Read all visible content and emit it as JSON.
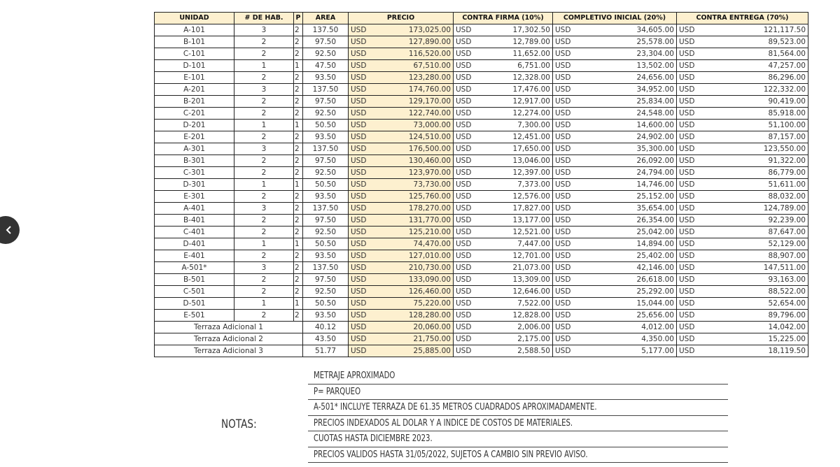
{
  "nav": {
    "back_icon": "chevron-left-icon"
  },
  "colors": {
    "header_bg": "#fdf0cf",
    "precio_bg": "#fdf0cf",
    "border": "#222222"
  },
  "table": {
    "headers": [
      "UNIDAD",
      "# DE HAB.",
      "P",
      "AREA",
      "PRECIO",
      "CONTRA FIRMA (10%)",
      "COMPLETIVO INICIAL (20%)",
      "CONTRA ENTREGA (70%)"
    ],
    "currency": "USD",
    "rows": [
      {
        "unidad": "A-101",
        "hab": "3",
        "p": "2",
        "area": "137.50",
        "precio": "173,025.00",
        "firma": "17,302.50",
        "inicial": "34,605.00",
        "entrega": "121,117.50"
      },
      {
        "unidad": "B-101",
        "hab": "2",
        "p": "2",
        "area": "97.50",
        "precio": "127,890.00",
        "firma": "12,789.00",
        "inicial": "25,578.00",
        "entrega": "89,523.00"
      },
      {
        "unidad": "C-101",
        "hab": "2",
        "p": "2",
        "area": "92.50",
        "precio": "116,520.00",
        "firma": "11,652.00",
        "inicial": "23,304.00",
        "entrega": "81,564.00"
      },
      {
        "unidad": "D-101",
        "hab": "1",
        "p": "1",
        "area": "47.50",
        "precio": "67,510.00",
        "firma": "6,751.00",
        "inicial": "13,502.00",
        "entrega": "47,257.00"
      },
      {
        "unidad": "E-101",
        "hab": "2",
        "p": "2",
        "area": "93.50",
        "precio": "123,280.00",
        "firma": "12,328.00",
        "inicial": "24,656.00",
        "entrega": "86,296.00"
      },
      {
        "unidad": "A-201",
        "hab": "3",
        "p": "2",
        "area": "137.50",
        "precio": "174,760.00",
        "firma": "17,476.00",
        "inicial": "34,952.00",
        "entrega": "122,332.00"
      },
      {
        "unidad": "B-201",
        "hab": "2",
        "p": "2",
        "area": "97.50",
        "precio": "129,170.00",
        "firma": "12,917.00",
        "inicial": "25,834.00",
        "entrega": "90,419.00"
      },
      {
        "unidad": "C-201",
        "hab": "2",
        "p": "2",
        "area": "92.50",
        "precio": "122,740.00",
        "firma": "12,274.00",
        "inicial": "24,548.00",
        "entrega": "85,918.00"
      },
      {
        "unidad": "D-201",
        "hab": "1",
        "p": "1",
        "area": "50.50",
        "precio": "73,000.00",
        "firma": "7,300.00",
        "inicial": "14,600.00",
        "entrega": "51,100.00"
      },
      {
        "unidad": "E-201",
        "hab": "2",
        "p": "2",
        "area": "93.50",
        "precio": "124,510.00",
        "firma": "12,451.00",
        "inicial": "24,902.00",
        "entrega": "87,157.00"
      },
      {
        "unidad": "A-301",
        "hab": "3",
        "p": "2",
        "area": "137.50",
        "precio": "176,500.00",
        "firma": "17,650.00",
        "inicial": "35,300.00",
        "entrega": "123,550.00"
      },
      {
        "unidad": "B-301",
        "hab": "2",
        "p": "2",
        "area": "97.50",
        "precio": "130,460.00",
        "firma": "13,046.00",
        "inicial": "26,092.00",
        "entrega": "91,322.00"
      },
      {
        "unidad": "C-301",
        "hab": "2",
        "p": "2",
        "area": "92.50",
        "precio": "123,970.00",
        "firma": "12,397.00",
        "inicial": "24,794.00",
        "entrega": "86,779.00"
      },
      {
        "unidad": "D-301",
        "hab": "1",
        "p": "1",
        "area": "50.50",
        "precio": "73,730.00",
        "firma": "7,373.00",
        "inicial": "14,746.00",
        "entrega": "51,611.00"
      },
      {
        "unidad": "E-301",
        "hab": "2",
        "p": "2",
        "area": "93.50",
        "precio": "125,760.00",
        "firma": "12,576.00",
        "inicial": "25,152.00",
        "entrega": "88,032.00"
      },
      {
        "unidad": "A-401",
        "hab": "3",
        "p": "2",
        "area": "137.50",
        "precio": "178,270.00",
        "firma": "17,827.00",
        "inicial": "35,654.00",
        "entrega": "124,789.00"
      },
      {
        "unidad": "B-401",
        "hab": "2",
        "p": "2",
        "area": "97.50",
        "precio": "131,770.00",
        "firma": "13,177.00",
        "inicial": "26,354.00",
        "entrega": "92,239.00"
      },
      {
        "unidad": "C-401",
        "hab": "2",
        "p": "2",
        "area": "92.50",
        "precio": "125,210.00",
        "firma": "12,521.00",
        "inicial": "25,042.00",
        "entrega": "87,647.00"
      },
      {
        "unidad": "D-401",
        "hab": "1",
        "p": "1",
        "area": "50.50",
        "precio": "74,470.00",
        "firma": "7,447.00",
        "inicial": "14,894.00",
        "entrega": "52,129.00"
      },
      {
        "unidad": "E-401",
        "hab": "2",
        "p": "2",
        "area": "93.50",
        "precio": "127,010.00",
        "firma": "12,701.00",
        "inicial": "25,402.00",
        "entrega": "88,907.00"
      },
      {
        "unidad": "A-501*",
        "hab": "3",
        "p": "2",
        "area": "137.50",
        "precio": "210,730.00",
        "firma": "21,073.00",
        "inicial": "42,146.00",
        "entrega": "147,511.00"
      },
      {
        "unidad": "B-501",
        "hab": "2",
        "p": "2",
        "area": "97.50",
        "precio": "133,090.00",
        "firma": "13,309.00",
        "inicial": "26,618.00",
        "entrega": "93,163.00"
      },
      {
        "unidad": "C-501",
        "hab": "2",
        "p": "2",
        "area": "92.50",
        "precio": "126,460.00",
        "firma": "12,646.00",
        "inicial": "25,292.00",
        "entrega": "88,522.00"
      },
      {
        "unidad": "D-501",
        "hab": "1",
        "p": "1",
        "area": "50.50",
        "precio": "75,220.00",
        "firma": "7,522.00",
        "inicial": "15,044.00",
        "entrega": "52,654.00"
      },
      {
        "unidad": "E-501",
        "hab": "2",
        "p": "2",
        "area": "93.50",
        "precio": "128,280.00",
        "firma": "12,828.00",
        "inicial": "25,656.00",
        "entrega": "89,796.00"
      },
      {
        "unidad": "Terraza Adicional 1",
        "area": "40.12",
        "precio": "20,060.00",
        "firma": "2,006.00",
        "inicial": "4,012.00",
        "entrega": "14,042.00"
      },
      {
        "unidad": "Terraza Adicional 2",
        "area": "43.50",
        "precio": "21,750.00",
        "firma": "2,175.00",
        "inicial": "4,350.00",
        "entrega": "15,225.00"
      },
      {
        "unidad": "Terraza Adicional 3",
        "area": "51.77",
        "precio": "25,885.00",
        "firma": "2,588.50",
        "inicial": "5,177.00",
        "entrega": "18,119.50"
      }
    ]
  },
  "notes": {
    "label": "NOTAS:",
    "items": [
      "METRAJE APROXIMADO",
      "P= PARQUEO",
      "A-501* INCLUYE TERRAZA DE 61.35 METROS CUADRADOS APROXIMADAMENTE.",
      "PRECIOS INDEXADOS AL DOLAR Y A INDICE DE COSTOS DE MATERIALES.",
      "CUOTAS HASTA DICIEMBRE 2023.",
      "PRECIOS VALIDOS HASTA 31/05/2022, SUJETOS A CAMBIO SIN PREVIO AVISO."
    ]
  }
}
